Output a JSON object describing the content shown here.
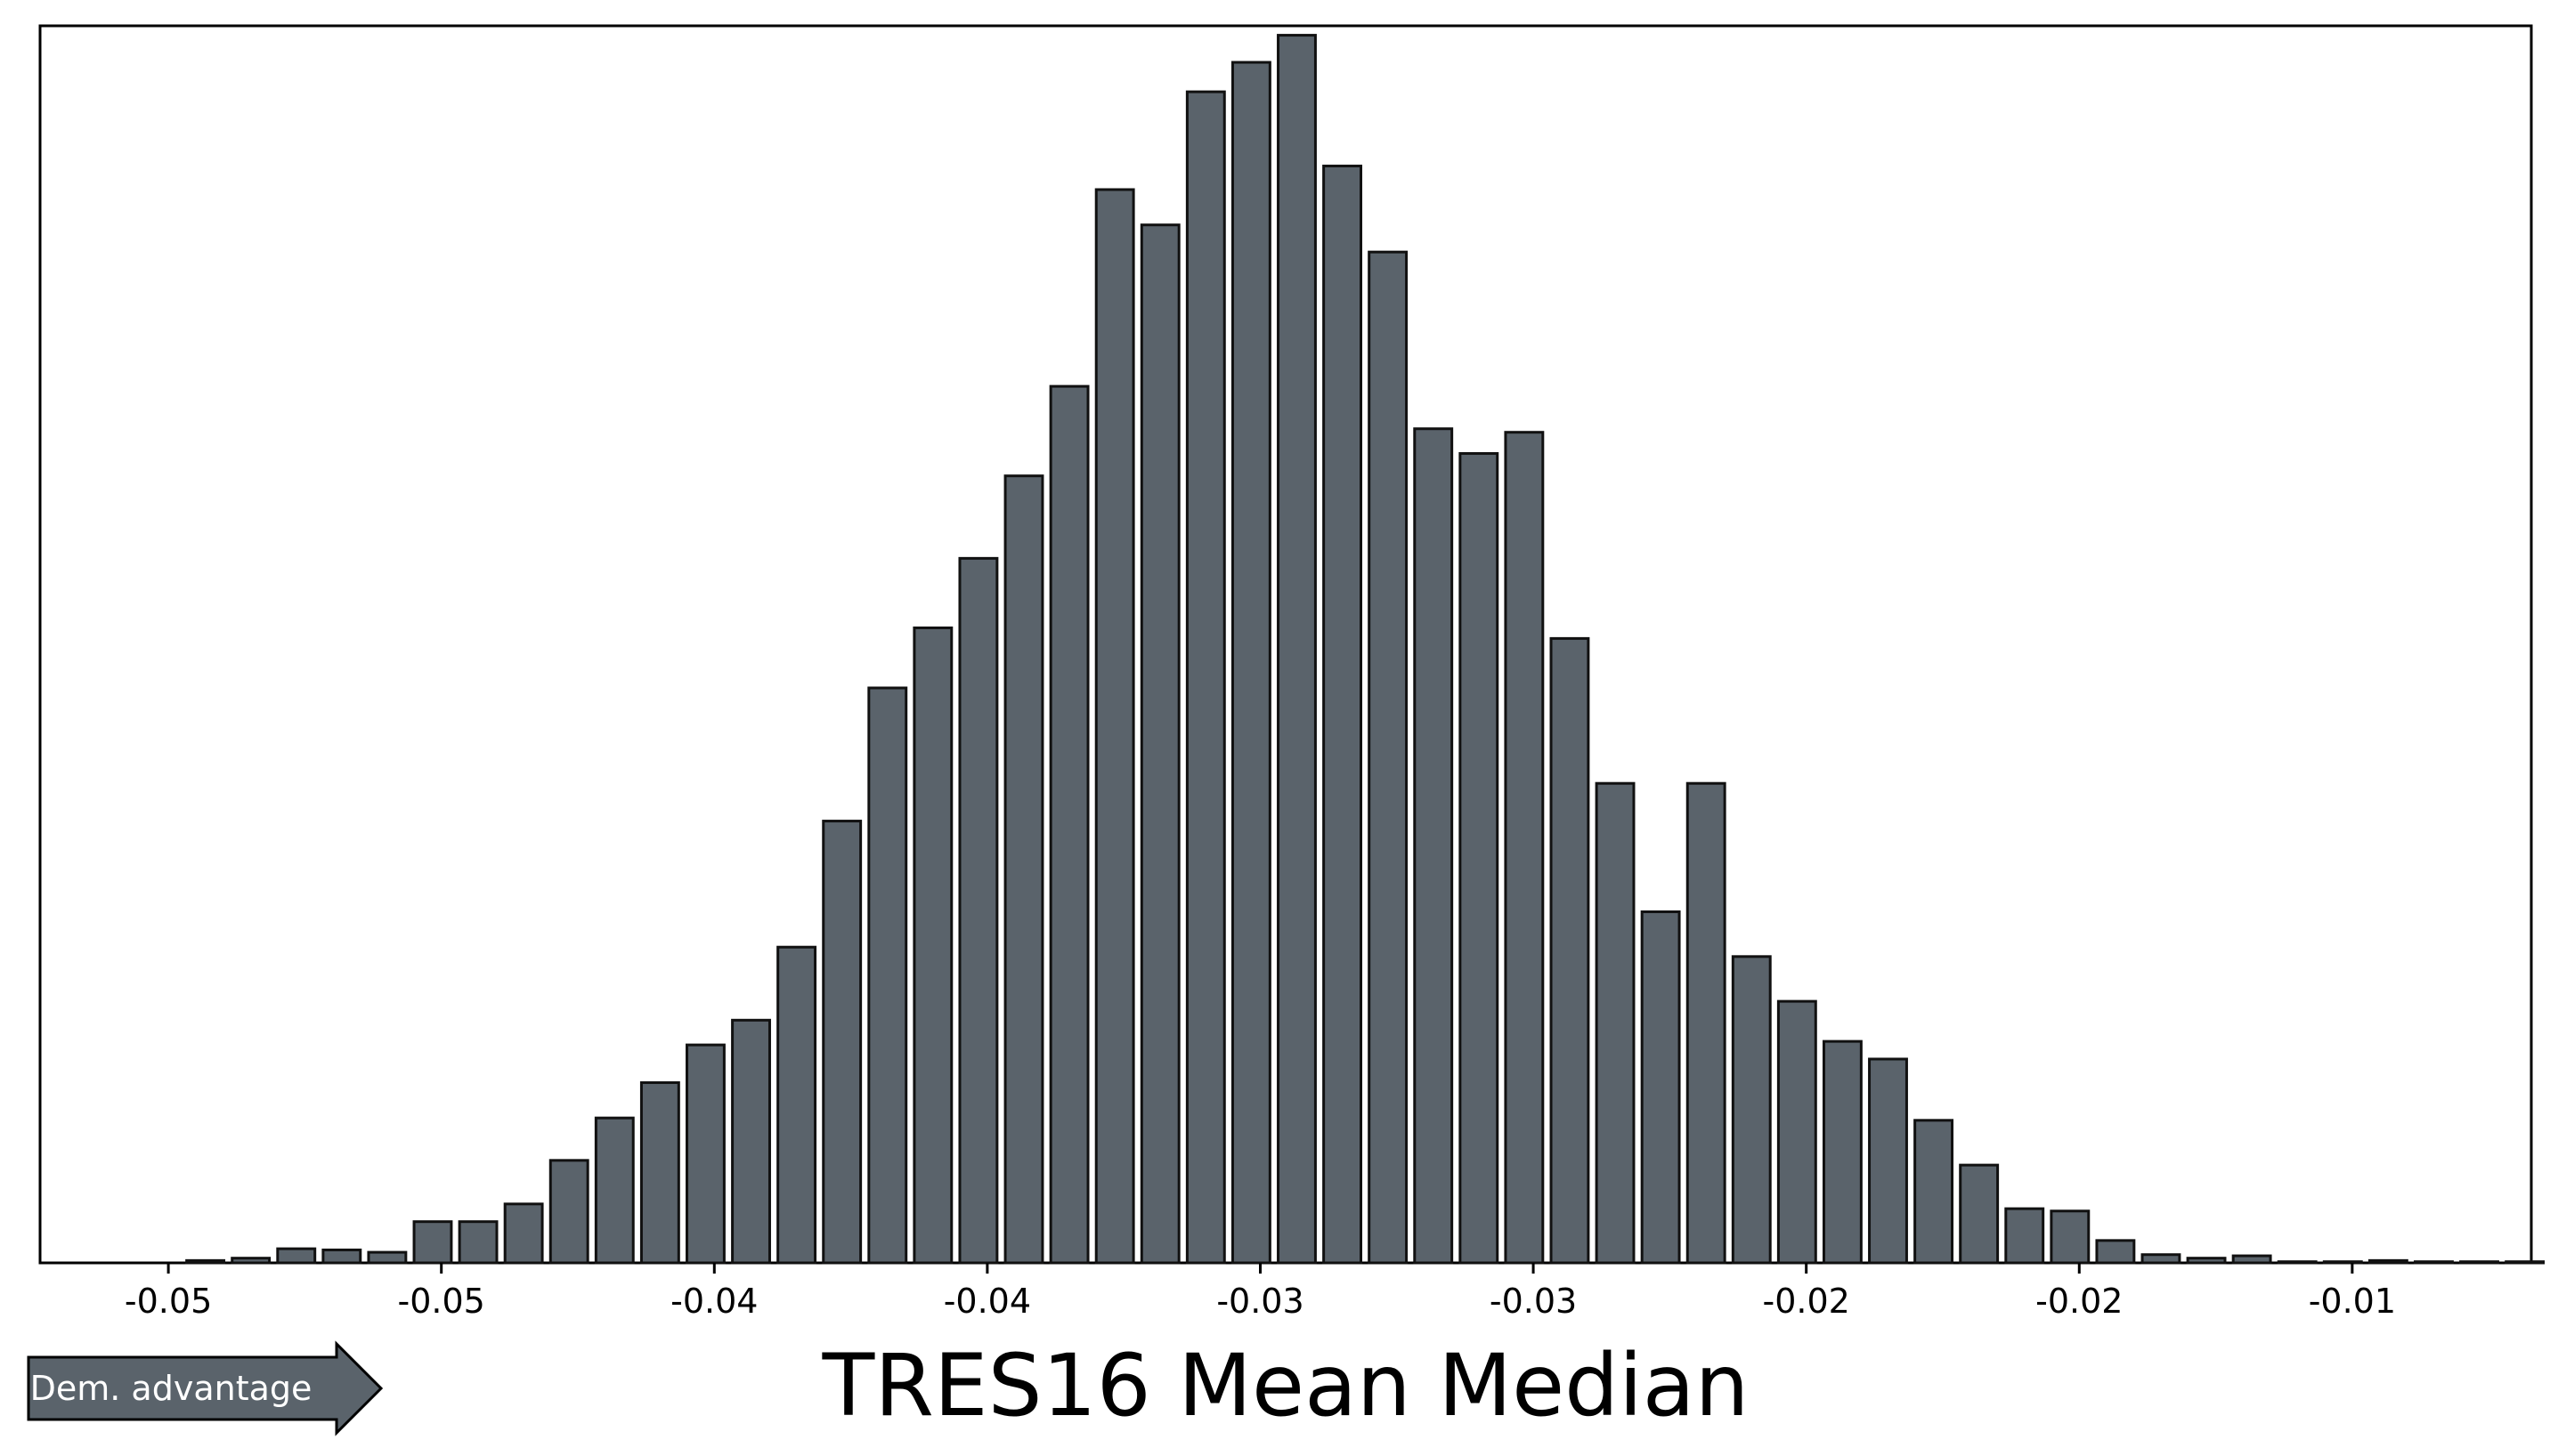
{
  "chart_data": {
    "type": "bar",
    "xlabel": "TRES16 Mean Median",
    "ylabel": "",
    "title": "",
    "y_axis_visible": false,
    "grid": false,
    "bar_color": "#5a636b",
    "edge_color": "#111111",
    "x_ticks": [
      {
        "value": -0.054,
        "label": "-0.05"
      },
      {
        "value": -0.049,
        "label": "-0.05"
      },
      {
        "value": -0.044,
        "label": "-0.04"
      },
      {
        "value": -0.039,
        "label": "-0.04"
      },
      {
        "value": -0.034,
        "label": "-0.03"
      },
      {
        "value": -0.029,
        "label": "-0.03"
      },
      {
        "value": -0.024,
        "label": "-0.02"
      },
      {
        "value": -0.019,
        "label": "-0.02"
      },
      {
        "value": -0.014,
        "label": "-0.01"
      },
      {
        "value": -0.009,
        "label": "-0.01"
      }
    ],
    "xlim": [
      -0.05635,
      -0.01072
    ],
    "ylim": [
      0,
      1.05
    ],
    "bin_start": -0.05374,
    "bin_width": 0.000833,
    "values": [
      0.002,
      0.004,
      0.012,
      0.011,
      0.009,
      0.035,
      0.035,
      0.05,
      0.087,
      0.123,
      0.153,
      0.185,
      0.206,
      0.268,
      0.375,
      0.488,
      0.539,
      0.598,
      0.668,
      0.744,
      0.911,
      0.881,
      0.994,
      1.019,
      1.042,
      0.931,
      0.858,
      0.708,
      0.687,
      0.705,
      0.53,
      0.407,
      0.298,
      0.407,
      0.26,
      0.222,
      0.188,
      0.173,
      0.121,
      0.083,
      0.046,
      0.044,
      0.019,
      0.007,
      0.004,
      0.006,
      0.001,
      0.001,
      0.002,
      0.001,
      0.001,
      0.001
    ],
    "annotation": {
      "text": "Dem. advantage",
      "direction": "right",
      "color": "#5a636b"
    }
  }
}
